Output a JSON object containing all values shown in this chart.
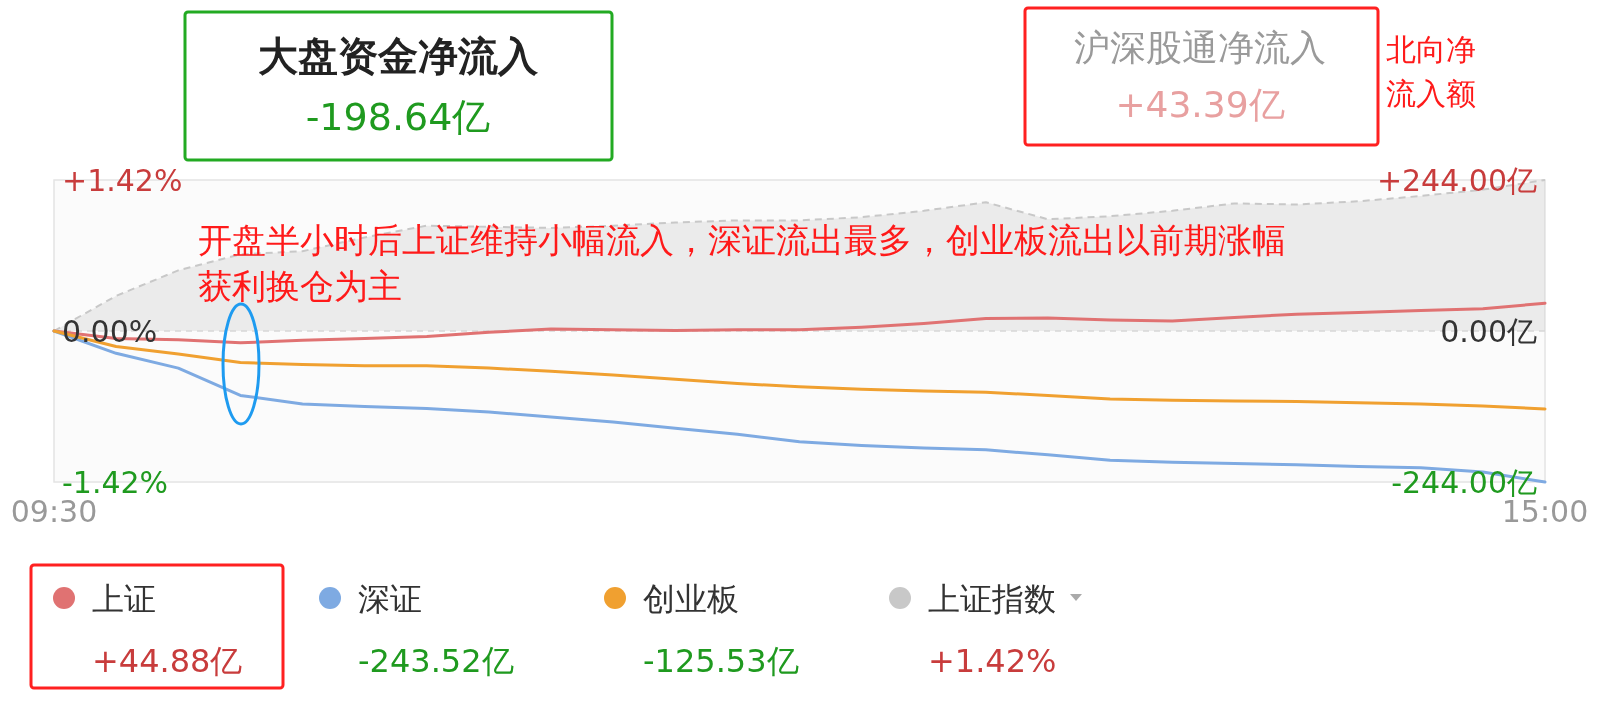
{
  "chart_data": {
    "type": "line",
    "title": "大盘资金净流入",
    "subtitle": "-198.64亿",
    "categories": [
      "09:30",
      null,
      null,
      null,
      null,
      null,
      null,
      null,
      null,
      null,
      null,
      null,
      null,
      null,
      null,
      null,
      null,
      null,
      null,
      null,
      null,
      null,
      null,
      null,
      "15:00"
    ],
    "ylim": [
      -1.42,
      1.42
    ],
    "yticks": [
      {
        "value": 1.42,
        "label": "+1.42%"
      },
      {
        "value": 0,
        "label": "0.00%"
      },
      {
        "value": -1.42,
        "label": "-1.42%"
      }
    ],
    "y2lim": [
      -244,
      244
    ],
    "y2ticks": [
      {
        "value": 244,
        "label": "+244.00亿"
      },
      {
        "value": 0,
        "label": "0.00亿"
      },
      {
        "value": -244,
        "label": "-244.00亿"
      }
    ],
    "grid": "y",
    "legend": "bottom",
    "series": [
      {
        "name": "上证",
        "color": "#e07272",
        "axis": "y2",
        "values": [
          0,
          -12,
          -14,
          -19,
          -15,
          -12,
          -9,
          -2,
          3,
          2,
          1,
          2,
          2,
          6,
          12,
          20,
          21,
          18,
          16,
          22,
          27,
          30,
          33,
          36,
          45
        ]
      },
      {
        "name": "深证",
        "color": "#7eaae2",
        "axis": "y2",
        "values": [
          0,
          -36,
          -60,
          -104,
          -118,
          -122,
          -125,
          -131,
          -139,
          -147,
          -157,
          -167,
          -179,
          -185,
          -189,
          -192,
          -200,
          -209,
          -212,
          -214,
          -216,
          -219,
          -221,
          -228,
          -244
        ]
      },
      {
        "name": "创业板",
        "color": "#f0a030",
        "axis": "y2",
        "values": [
          0,
          -25,
          -37,
          -51,
          -54,
          -56,
          -56,
          -60,
          -65,
          -71,
          -78,
          -85,
          -90,
          -94,
          -97,
          -99,
          -104,
          -110,
          -112,
          -113,
          -114,
          -116,
          -118,
          -121,
          -126
        ]
      },
      {
        "name": "上证指数",
        "color": "#c8c8c8",
        "type": "area",
        "axis": "y",
        "line_style": "dashed",
        "values": [
          0,
          0.33,
          0.57,
          0.72,
          0.75,
          0.88,
          0.99,
          0.98,
          0.97,
          0.99,
          1.02,
          1.04,
          1.04,
          1.07,
          1.13,
          1.21,
          1.05,
          1.08,
          1.13,
          1.2,
          1.19,
          1.22,
          1.27,
          1.33,
          1.42
        ]
      }
    ],
    "annotations": [
      "沪深股通净流入",
      "+43.39亿",
      "北向净流入额",
      "开盘半小时后上证维持小幅流入，深证流出最多，创业板流出以前期涨幅获利换仓为主",
      "+44.88亿",
      "-243.52亿",
      "-125.53亿",
      "+1.42%"
    ]
  }
}
